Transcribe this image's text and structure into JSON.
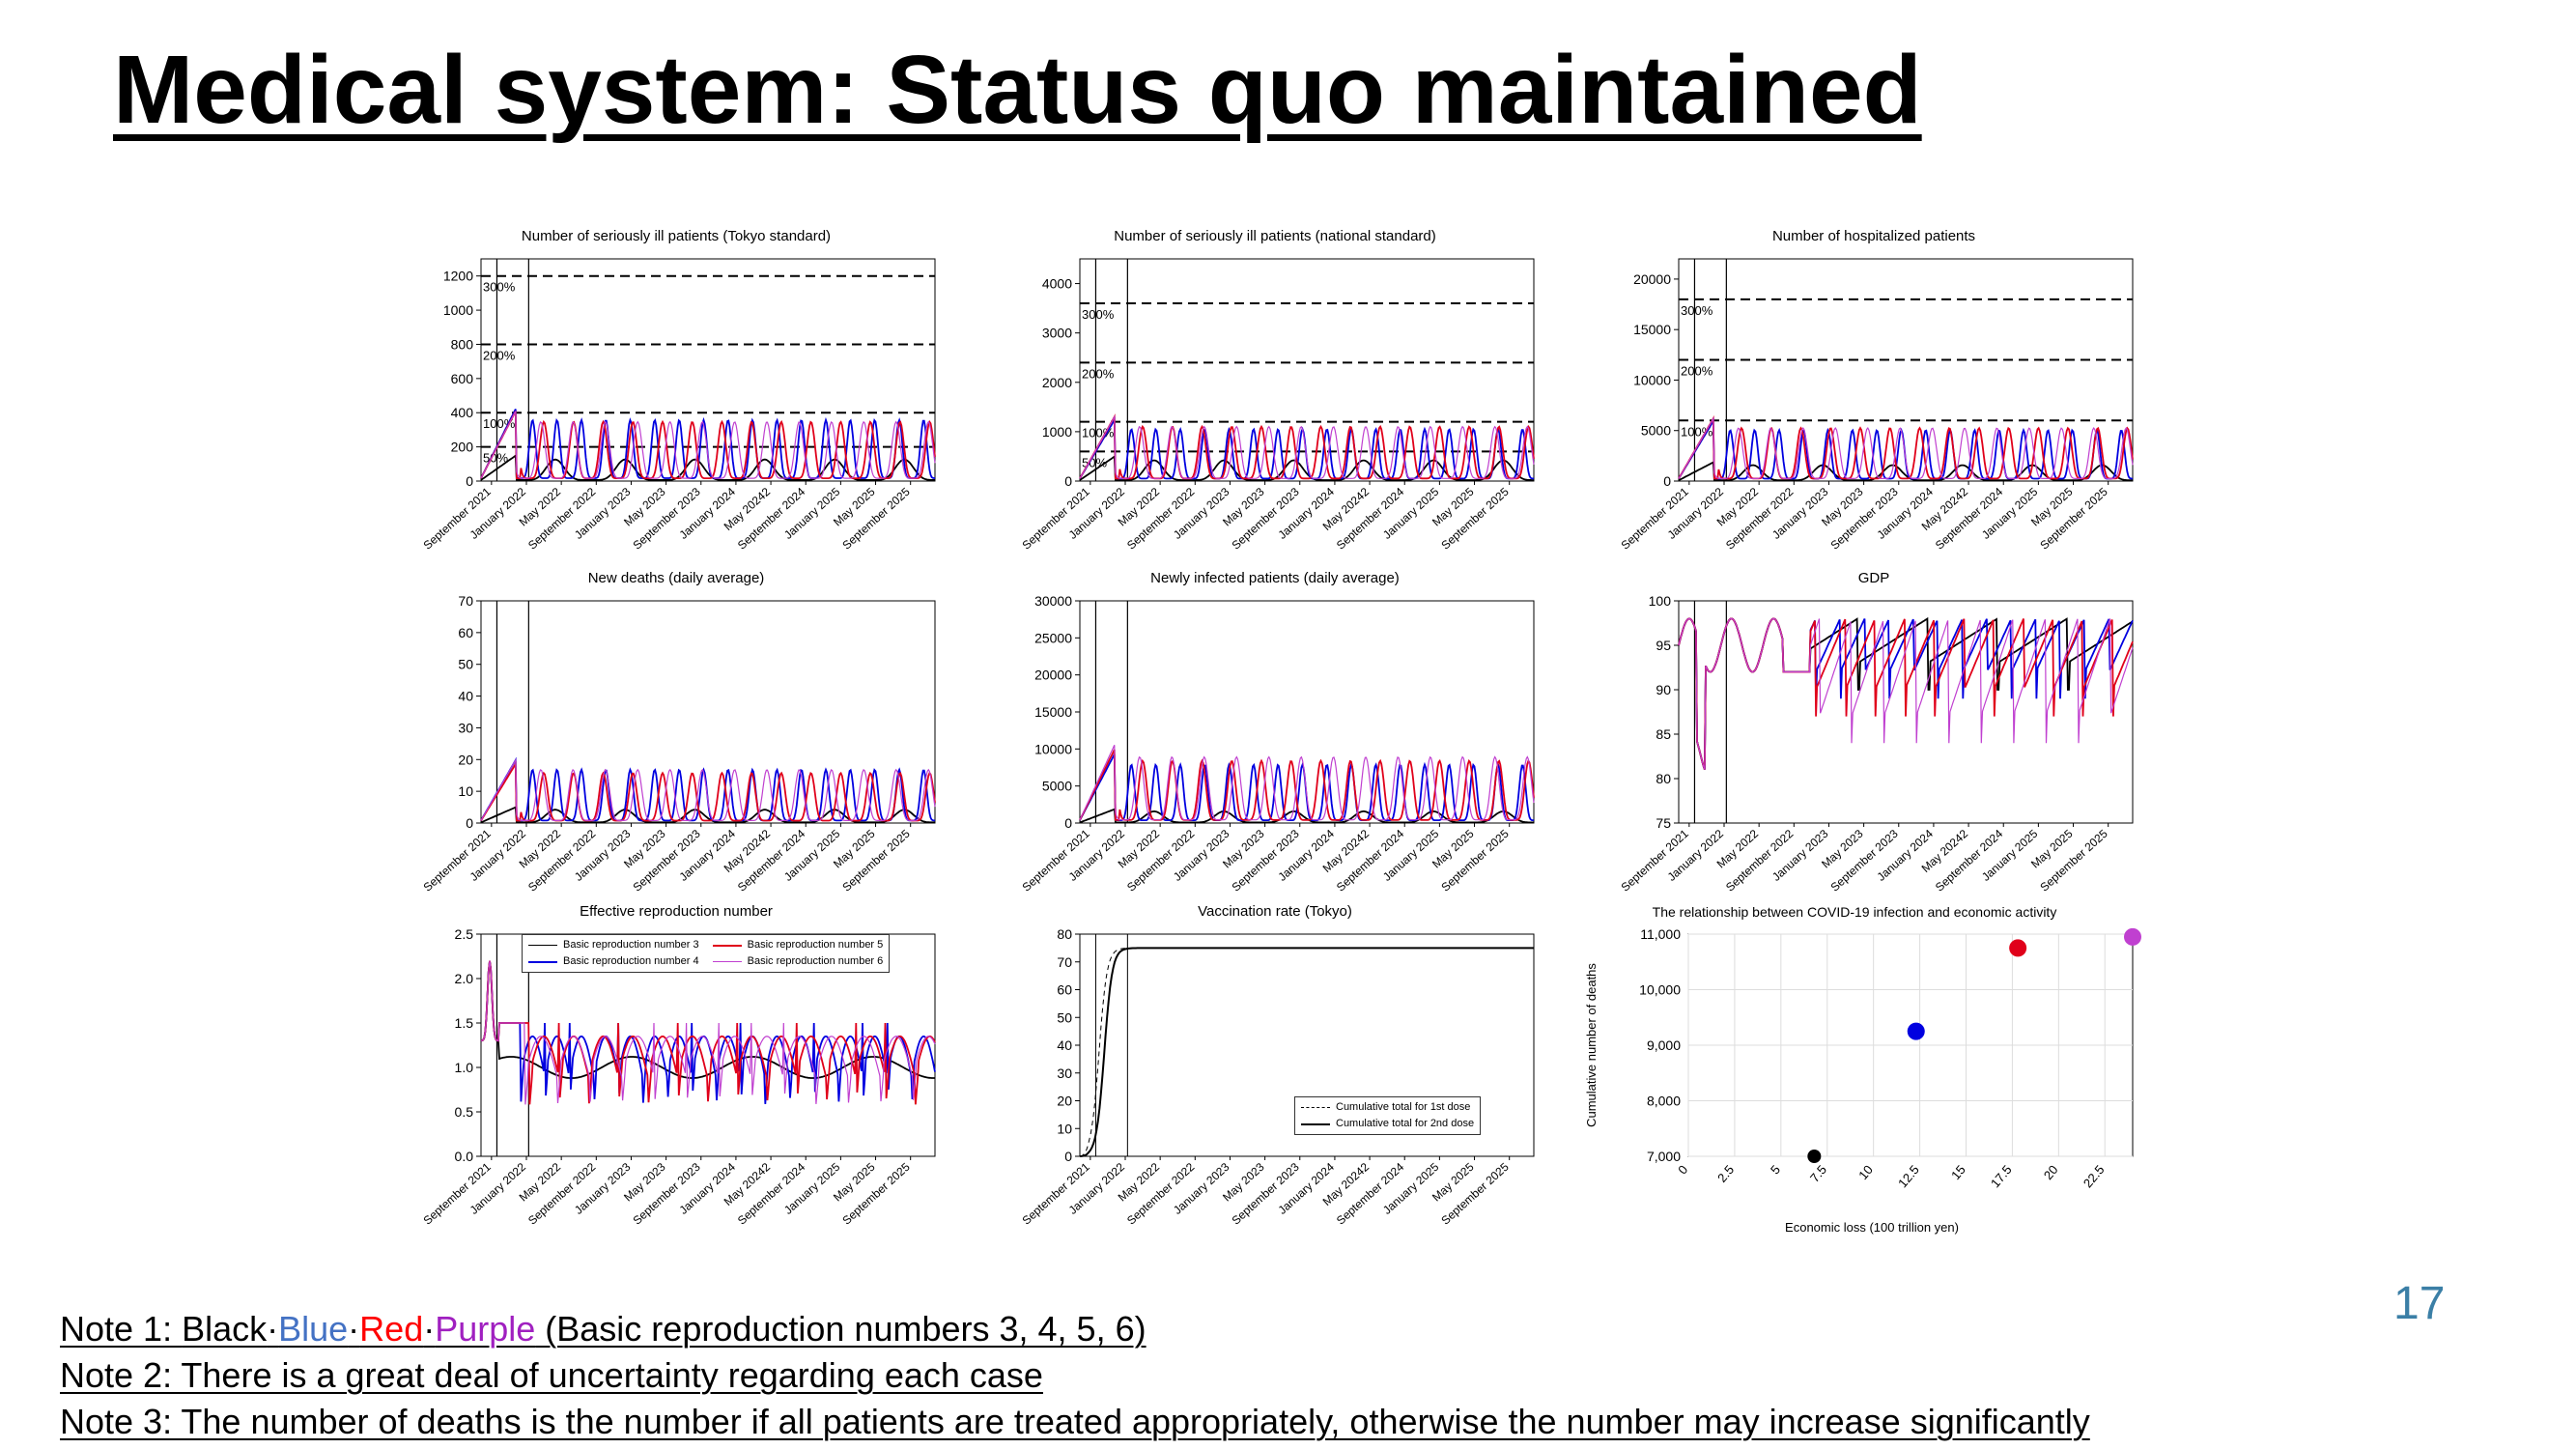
{
  "slide": {
    "title": "Medical system: Status quo maintained",
    "page_number": "17"
  },
  "notes": {
    "note1_prefix": "Note 1: ",
    "note1_black": "Black",
    "note1_dot1": "·",
    "note1_blue": "Blue",
    "note1_dot2": "·",
    "note1_red": "Red",
    "note1_dot3": "·",
    "note1_purple": "Purple",
    "note1_suffix": " (Basic reproduction numbers 3, 4, 5, 6)",
    "note2": "Note 2: There is a great deal of uncertainty regarding each case",
    "note3": "Note 3: The number of deaths is the number if all patients are treated appropriately, otherwise the number may increase significantly"
  },
  "colors": {
    "black": "#000000",
    "blue": "#0000e0",
    "red": "#e0001a",
    "purple": "#c040d0",
    "page_number": "#3b7fa6"
  },
  "chart_data": [
    {
      "id": "tokyo-severe",
      "type": "line",
      "title": "Number of seriously ill patients (Tokyo standard)",
      "ylim": [
        0,
        1300
      ],
      "yticks": [
        0,
        200,
        400,
        600,
        800,
        1000,
        1200
      ],
      "yticklabels": [
        "0",
        "200",
        "400",
        "600",
        "800",
        "1000",
        "1200"
      ],
      "xticklabels": [
        "September 2021",
        "January 2022",
        "May 2022",
        "September 2022",
        "January 2023",
        "May 2023",
        "September 2023",
        "January 2024",
        "May 20242",
        "September 2024",
        "January 2025",
        "May 2025",
        "September 2025"
      ],
      "hlines": [
        {
          "y": 1200,
          "label": "300%"
        },
        {
          "y": 800,
          "label": "200%"
        },
        {
          "y": 400,
          "label": "100%"
        },
        {
          "y": 200,
          "label": "50%"
        }
      ],
      "series": [
        {
          "color": "black",
          "peak": 120,
          "period": 8.0,
          "start": 4.5
        },
        {
          "color": "blue",
          "peak": 340,
          "period": 2.8,
          "start": 4.5
        },
        {
          "color": "red",
          "peak": 330,
          "period": 3.4,
          "start": 5.5
        },
        {
          "color": "purple",
          "peak": 330,
          "period": 3.7,
          "start": 5.0
        }
      ]
    },
    {
      "id": "national-severe",
      "type": "line",
      "title": "Number of seriously ill patients (national standard)",
      "ylim": [
        0,
        4500
      ],
      "yticks": [
        0,
        1000,
        2000,
        3000,
        4000
      ],
      "yticklabels": [
        "0",
        "1000",
        "2000",
        "3000",
        "4000"
      ],
      "xticklabels": [
        "September 2021",
        "January 2022",
        "May 2022",
        "September 2022",
        "January 2023",
        "May 2023",
        "September 2023",
        "January 2024",
        "May 20242",
        "September 2024",
        "January 2025",
        "May 2025",
        "September 2025"
      ],
      "hlines": [
        {
          "y": 3600,
          "label": "300%"
        },
        {
          "y": 2400,
          "label": "200%"
        },
        {
          "y": 1200,
          "label": "100%"
        },
        {
          "y": 600,
          "label": "50%"
        }
      ],
      "series": [
        {
          "color": "black",
          "peak": 400,
          "period": 8.0,
          "start": 4.5
        },
        {
          "color": "blue",
          "peak": 1000,
          "period": 2.8,
          "start": 4.5
        },
        {
          "color": "red",
          "peak": 1050,
          "period": 3.4,
          "start": 5.5
        },
        {
          "color": "purple",
          "peak": 1050,
          "period": 3.7,
          "start": 5.0
        }
      ]
    },
    {
      "id": "hospitalized",
      "type": "line",
      "title": "Number of hospitalized patients",
      "ylim": [
        0,
        22000
      ],
      "yticks": [
        0,
        5000,
        10000,
        15000,
        20000
      ],
      "yticklabels": [
        "0",
        "5000",
        "10000",
        "15000",
        "20000"
      ],
      "xticklabels": [
        "September 2021",
        "January 2022",
        "May 2022",
        "September 2022",
        "January 2023",
        "May 2023",
        "September 2023",
        "January 2024",
        "May 20242",
        "September 2024",
        "January 2025",
        "May 2025",
        "September 2025"
      ],
      "hlines": [
        {
          "y": 18000,
          "label": "300%"
        },
        {
          "y": 12000,
          "label": "200%"
        },
        {
          "y": 6000,
          "label": "100%"
        }
      ],
      "series": [
        {
          "color": "black",
          "peak": 1500,
          "period": 8.0,
          "start": 4.5
        },
        {
          "color": "blue",
          "peak": 4800,
          "period": 2.8,
          "start": 4.5
        },
        {
          "color": "red",
          "peak": 5000,
          "period": 3.4,
          "start": 5.5
        },
        {
          "color": "purple",
          "peak": 5000,
          "period": 3.7,
          "start": 5.0
        }
      ]
    },
    {
      "id": "new-deaths",
      "type": "line",
      "title": "New deaths (daily average)",
      "ylim": [
        0,
        70
      ],
      "yticks": [
        0,
        10,
        20,
        30,
        40,
        50,
        60,
        70
      ],
      "yticklabels": [
        "0",
        "10",
        "20",
        "30",
        "40",
        "50",
        "60",
        "70"
      ],
      "xticklabels": [
        "September 2021",
        "January 2022",
        "May 2022",
        "September 2022",
        "January 2023",
        "May 2023",
        "September 2023",
        "January 2024",
        "May 20242",
        "September 2024",
        "January 2025",
        "May 2025",
        "September 2025"
      ],
      "series": [
        {
          "color": "black",
          "peak": 4,
          "period": 8.0,
          "start": 4.5
        },
        {
          "color": "blue",
          "peak": 16,
          "period": 2.8,
          "start": 4.5
        },
        {
          "color": "red",
          "peak": 15,
          "period": 3.4,
          "start": 5.5
        },
        {
          "color": "purple",
          "peak": 16,
          "period": 3.7,
          "start": 5.0
        }
      ]
    },
    {
      "id": "new-infected",
      "type": "line",
      "title": "Newly infected patients (daily average)",
      "ylim": [
        0,
        30000
      ],
      "yticks": [
        0,
        5000,
        10000,
        15000,
        20000,
        25000,
        30000
      ],
      "yticklabels": [
        "0",
        "5000",
        "10000",
        "15000",
        "20000",
        "25000",
        "30000"
      ],
      "xticklabels": [
        "September 2021",
        "January 2022",
        "May 2022",
        "September 2022",
        "January 2023",
        "May 2023",
        "September 2023",
        "January 2024",
        "May 20242",
        "September 2024",
        "January 2025",
        "May 2025",
        "September 2025"
      ],
      "series": [
        {
          "color": "black",
          "peak": 1500,
          "period": 8.0,
          "start": 4.5
        },
        {
          "color": "blue",
          "peak": 7500,
          "period": 2.8,
          "start": 4.5
        },
        {
          "color": "red",
          "peak": 8000,
          "period": 3.4,
          "start": 5.5
        },
        {
          "color": "purple",
          "peak": 8500,
          "period": 3.7,
          "start": 5.0
        }
      ]
    },
    {
      "id": "gdp",
      "type": "line",
      "title": "GDP",
      "ylim": [
        75,
        100
      ],
      "yticks": [
        75,
        80,
        85,
        90,
        95,
        100
      ],
      "yticklabels": [
        "75",
        "80",
        "85",
        "90",
        "95",
        "100"
      ],
      "xticklabels": [
        "September 2021",
        "January 2022",
        "May 2022",
        "September 2022",
        "January 2023",
        "May 2023",
        "September 2023",
        "January 2024",
        "May 20242",
        "September 2024",
        "January 2025",
        "May 2025",
        "September 2025"
      ],
      "series": [
        {
          "color": "black",
          "low": 90,
          "period": 8.0,
          "start": 4.5
        },
        {
          "color": "blue",
          "low": 89,
          "period": 2.8,
          "start": 4.5
        },
        {
          "color": "red",
          "low": 87,
          "period": 3.4,
          "start": 5.5
        },
        {
          "color": "purple",
          "low": 84,
          "period": 3.7,
          "start": 5.0
        }
      ]
    },
    {
      "id": "effective-r",
      "type": "line",
      "title": "Effective reproduction number",
      "ylim": [
        0,
        2.5
      ],
      "yticks": [
        0,
        0.5,
        1.0,
        1.5,
        2.0,
        2.5
      ],
      "yticklabels": [
        "0.0",
        "0.5",
        "1.0",
        "1.5",
        "2.0",
        "2.5"
      ],
      "xticklabels": [
        "September 2021",
        "January 2022",
        "May 2022",
        "September 2022",
        "January 2023",
        "May 2023",
        "September 2023",
        "January 2024",
        "May 20242",
        "September 2024",
        "January 2025",
        "May 2025",
        "September 2025"
      ],
      "legend": [
        {
          "label": "Basic reproduction number 3",
          "color": "black"
        },
        {
          "label": "Basic reproduction number 5",
          "color": "red"
        },
        {
          "label": "Basic reproduction number 4",
          "color": "blue"
        },
        {
          "label": "Basic reproduction number 6",
          "color": "purple"
        }
      ],
      "series": [
        {
          "color": "black",
          "period": 8.0,
          "start": 4.5
        },
        {
          "color": "blue",
          "period": 2.8,
          "start": 4.5
        },
        {
          "color": "red",
          "period": 3.4,
          "start": 5.5
        },
        {
          "color": "purple",
          "period": 3.7,
          "start": 5.0
        }
      ]
    },
    {
      "id": "vaccination",
      "type": "line",
      "title": "Vaccination rate (Tokyo)",
      "ylim": [
        0,
        80
      ],
      "yticks": [
        0,
        10,
        20,
        30,
        40,
        50,
        60,
        70,
        80
      ],
      "yticklabels": [
        "0",
        "10",
        "20",
        "30",
        "40",
        "50",
        "60",
        "70",
        "80"
      ],
      "xticklabels": [
        "September 2021",
        "January 2022",
        "May 2022",
        "September 2022",
        "January 2023",
        "May 2023",
        "September 2023",
        "January 2024",
        "May 20242",
        "September 2024",
        "January 2025",
        "May 2025",
        "September 2025"
      ],
      "legend": [
        {
          "label": "Cumulative total for 1st dose",
          "style": "thin"
        },
        {
          "label": "Cumulative total for 2nd dose",
          "style": "thick"
        }
      ],
      "series": [
        {
          "name": "Cumulative total for 1st dose",
          "plateau": 75
        },
        {
          "name": "Cumulative total for 2nd dose",
          "plateau": 75
        }
      ]
    },
    {
      "id": "economy-vs-deaths",
      "type": "scatter",
      "title": "The relationship between COVID-19 infection and economic activity",
      "xlabel": "Economic loss (100 trillion yen)",
      "ylabel": "Cumulative number of deaths",
      "xlim": [
        0,
        24
      ],
      "ylim": [
        7000,
        11000
      ],
      "xticks": [
        0,
        2.5,
        5,
        7.5,
        10,
        12.5,
        15,
        17.5,
        20,
        22.5
      ],
      "xticklabels": [
        "0",
        "2.5",
        "5",
        "7.5",
        "10",
        "12.5",
        "15",
        "17.5",
        "20",
        "22.5"
      ],
      "yticks": [
        7000,
        8000,
        9000,
        10000,
        11000
      ],
      "yticklabels": [
        "7,000",
        "8,000",
        "9,000",
        "10,000",
        "11,000"
      ],
      "points": [
        {
          "x": 6.8,
          "y": 7000,
          "color": "black"
        },
        {
          "x": 12.3,
          "y": 9250,
          "color": "blue"
        },
        {
          "x": 17.8,
          "y": 10750,
          "color": "red"
        },
        {
          "x": 24.0,
          "y": 10950,
          "color": "purple"
        }
      ]
    }
  ]
}
